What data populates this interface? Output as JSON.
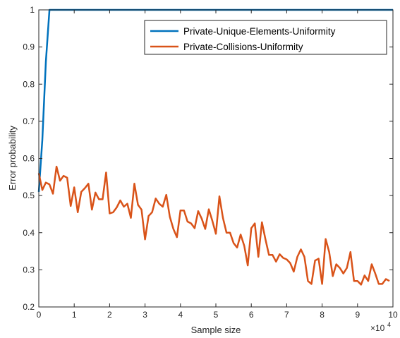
{
  "chart_data": {
    "type": "line",
    "xlabel": "Sample size",
    "ylabel": "Error probability",
    "x_exponent_label": "×10",
    "x_exponent_power": "4",
    "xlim": [
      0,
      10
    ],
    "ylim": [
      0.2,
      1
    ],
    "x_ticks": [
      "0",
      "1",
      "2",
      "3",
      "4",
      "5",
      "6",
      "7",
      "8",
      "9",
      "10"
    ],
    "y_ticks": [
      "0.2",
      "0.3",
      "0.4",
      "0.5",
      "0.6",
      "0.7",
      "0.8",
      "0.9",
      "1"
    ],
    "grid": false,
    "legend_position": "top-right",
    "series": [
      {
        "name": "Private-Unique-Elements-Uniformity",
        "color": "#0072BD",
        "x": [
          0,
          0.1,
          0.2,
          0.3,
          10
        ],
        "y": [
          0.51,
          0.65,
          0.86,
          1.0,
          1.0
        ]
      },
      {
        "name": "Private-Collisions-Uniformity",
        "color": "#D95319",
        "x": [
          0,
          0.1,
          0.2,
          0.3,
          0.4,
          0.5,
          0.6,
          0.7,
          0.8,
          0.9,
          1.0,
          1.1,
          1.2,
          1.3,
          1.4,
          1.5,
          1.6,
          1.7,
          1.8,
          1.9,
          2.0,
          2.1,
          2.2,
          2.3,
          2.4,
          2.5,
          2.6,
          2.7,
          2.8,
          2.9,
          3.0,
          3.1,
          3.2,
          3.3,
          3.4,
          3.5,
          3.6,
          3.7,
          3.8,
          3.9,
          4.0,
          4.1,
          4.2,
          4.3,
          4.4,
          4.5,
          4.6,
          4.7,
          4.8,
          4.9,
          5.0,
          5.1,
          5.2,
          5.3,
          5.4,
          5.5,
          5.6,
          5.7,
          5.8,
          5.9,
          6.0,
          6.1,
          6.2,
          6.3,
          6.4,
          6.5,
          6.6,
          6.7,
          6.8,
          6.9,
          7.0,
          7.1,
          7.2,
          7.3,
          7.4,
          7.5,
          7.6,
          7.7,
          7.8,
          7.9,
          8.0,
          8.1,
          8.2,
          8.3,
          8.4,
          8.5,
          8.6,
          8.7,
          8.8,
          8.9,
          9.0,
          9.1,
          9.2,
          9.3,
          9.4,
          9.5,
          9.6,
          9.7,
          9.8,
          9.9
        ],
        "y": [
          0.56,
          0.515,
          0.535,
          0.53,
          0.505,
          0.578,
          0.54,
          0.553,
          0.548,
          0.472,
          0.522,
          0.455,
          0.51,
          0.52,
          0.532,
          0.462,
          0.508,
          0.49,
          0.49,
          0.562,
          0.452,
          0.455,
          0.468,
          0.487,
          0.47,
          0.478,
          0.44,
          0.532,
          0.475,
          0.462,
          0.382,
          0.445,
          0.455,
          0.492,
          0.478,
          0.47,
          0.502,
          0.443,
          0.41,
          0.388,
          0.46,
          0.46,
          0.43,
          0.425,
          0.412,
          0.458,
          0.438,
          0.41,
          0.463,
          0.432,
          0.397,
          0.498,
          0.44,
          0.4,
          0.4,
          0.372,
          0.36,
          0.395,
          0.365,
          0.312,
          0.412,
          0.425,
          0.335,
          0.428,
          0.382,
          0.34,
          0.34,
          0.322,
          0.342,
          0.332,
          0.328,
          0.318,
          0.295,
          0.335,
          0.355,
          0.335,
          0.27,
          0.262,
          0.325,
          0.33,
          0.262,
          0.383,
          0.348,
          0.283,
          0.315,
          0.305,
          0.29,
          0.305,
          0.348,
          0.27,
          0.27,
          0.26,
          0.285,
          0.27,
          0.315,
          0.29,
          0.262,
          0.262,
          0.275,
          0.27
        ]
      }
    ]
  }
}
